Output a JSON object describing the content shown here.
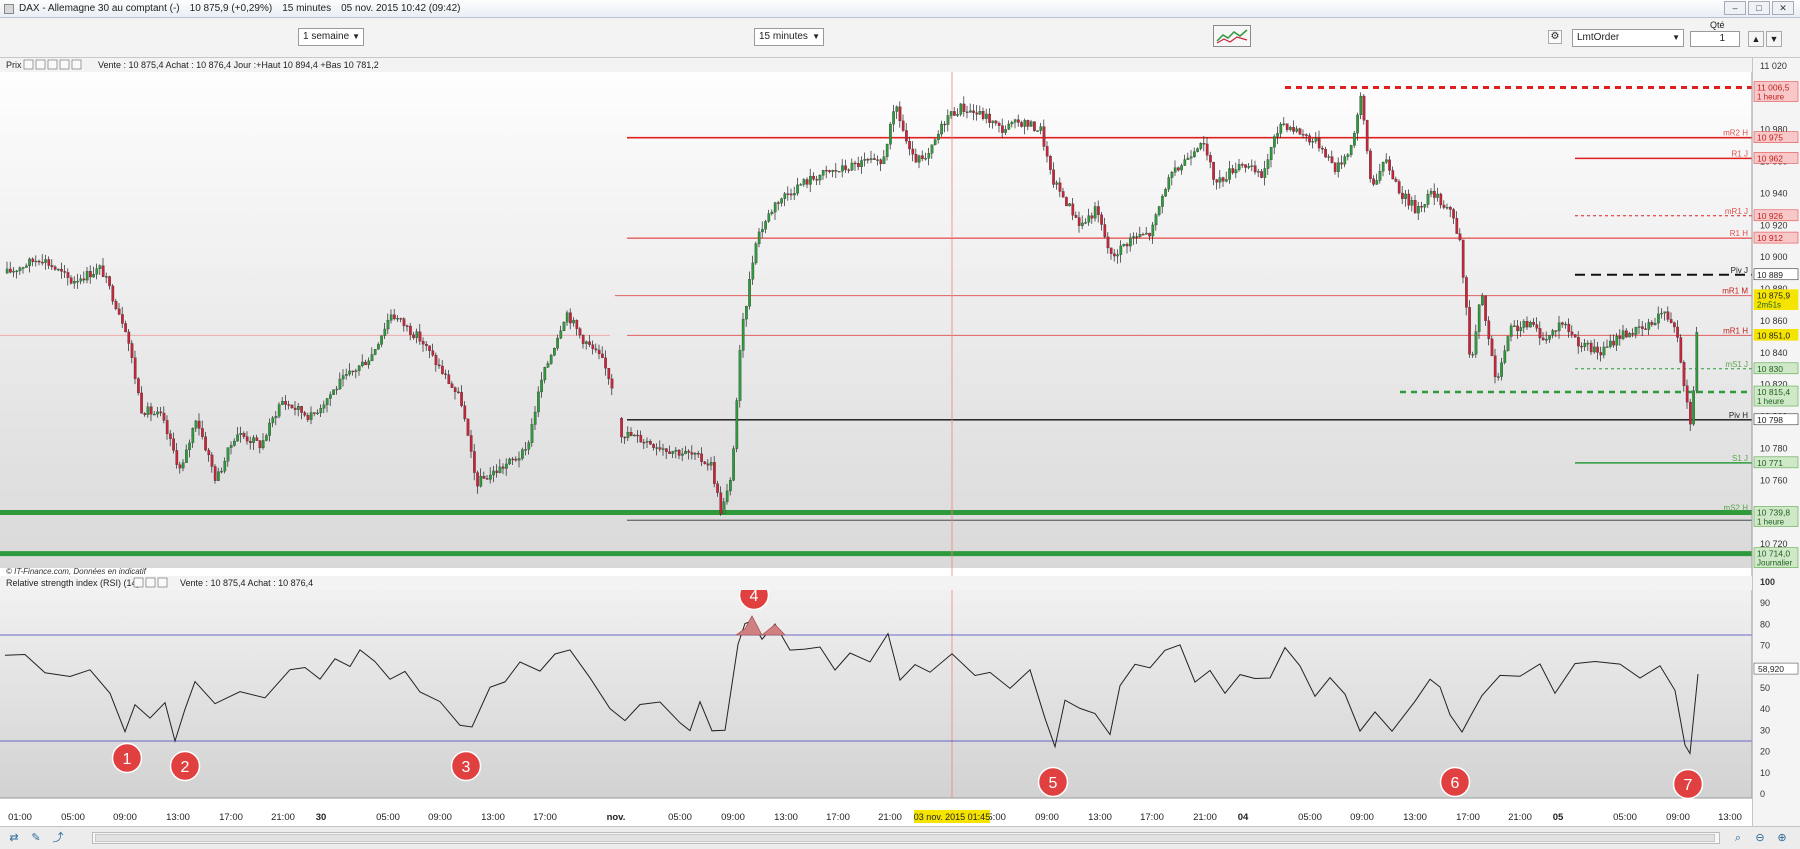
{
  "window": {
    "title": "DAX - Allemagne 30 au comptant (-)",
    "quote": "10 875,9 (+0,29%)",
    "interval": "15 minutes",
    "datetime": "05 nov. 2015 10:42 (09:42)"
  },
  "toolbar": {
    "period": "1 semaine",
    "timeframe": "15 minutes",
    "order_type": "LmtOrder",
    "qty_label": "Qté",
    "qty_value": "1"
  },
  "price_panel": {
    "label": "Prix",
    "info": "Vente : 10 875,4 Achat : 10 876,4 Jour :+Haut 10 894,4 +Bas 10 781,2",
    "credit": "© IT-Finance.com, Données en indicatif",
    "y_ticks": [
      "11 020",
      "11 000",
      "10 980",
      "10 960",
      "10 940",
      "10 920",
      "10 900",
      "10 880",
      "10 860",
      "10 840",
      "10 820",
      "10 800",
      "10 780",
      "10 760",
      "10 740",
      "10 720"
    ],
    "level_tags": [
      {
        "text": "11 006,5",
        "sub": "1 heure",
        "color": "#e05050",
        "price": 11006.5
      },
      {
        "text": "10 975",
        "sub": "",
        "color": "#e05050",
        "price": 10975,
        "name": "mR2 H"
      },
      {
        "text": "10 962",
        "sub": "",
        "color": "#e05050",
        "price": 10962,
        "name": "R1 J"
      },
      {
        "text": "10 926",
        "sub": "",
        "color": "#e05050",
        "price": 10926,
        "name": "mR1 J"
      },
      {
        "text": "10 912",
        "sub": "",
        "color": "#e05050",
        "price": 10912,
        "name": "R1 H"
      },
      {
        "text": "10 889",
        "sub": "",
        "color": "#333333",
        "price": 10889,
        "name": "Piv J"
      },
      {
        "text": "10 875,9",
        "sub": "2m51s",
        "color": "#f5e400",
        "price": 10875.9,
        "name": "mR1 M"
      },
      {
        "text": "10 851,0",
        "sub": "",
        "color": "#f5e400",
        "price": 10851,
        "name": "mR1 H"
      },
      {
        "text": "10 830",
        "sub": "",
        "color": "#5aa84a",
        "price": 10830,
        "name": "mS1 J"
      },
      {
        "text": "10 815,4",
        "sub": "1 heure",
        "color": "#5aa84a",
        "price": 10815.4
      },
      {
        "text": "10 798",
        "sub": "",
        "color": "#333333",
        "price": 10798,
        "name": "Piv H"
      },
      {
        "text": "10 771",
        "sub": "",
        "color": "#5aa84a",
        "price": 10771,
        "name": "S1 J"
      },
      {
        "text": "10 739,8",
        "sub": "1 heure",
        "color": "#5aa84a",
        "price": 10739.8,
        "name": "mS2 H"
      },
      {
        "text": "10 714,0",
        "sub": "Journalier",
        "color": "#5aa84a",
        "price": 10714
      }
    ]
  },
  "rsi_panel": {
    "label": "Relative strength index (RSI) (14)",
    "info": "Vente : 10 875,4 Achat : 10 876,4",
    "y_ticks": [
      "100",
      "90",
      "80",
      "70",
      "60",
      "50",
      "40",
      "30",
      "20",
      "10",
      "0"
    ],
    "current": "58,920",
    "markers": [
      "1",
      "2",
      "3",
      "4",
      "5",
      "6",
      "7"
    ]
  },
  "time_axis": {
    "labels": [
      "01:00",
      "05:00",
      "09:00",
      "13:00",
      "17:00",
      "21:00",
      "30",
      "05:00",
      "09:00",
      "13:00",
      "17:00",
      "nov.",
      "05:00",
      "09:00",
      "13:00",
      "17:00",
      "21:00",
      "05:00",
      "09:00",
      "13:00",
      "17:00",
      "21:00",
      "04",
      "05:00",
      "09:00",
      "13:00",
      "17:00",
      "21:00",
      "05",
      "05:00",
      "09:00",
      "13:00"
    ],
    "cursor_label": "03 nov. 2015 01:45"
  },
  "colors": {
    "up": "#2e9a3c",
    "down": "#c8243c",
    "resistance": "#e02020",
    "support": "#2e9a3c",
    "marker": "#e04040"
  },
  "chart_data": {
    "type": "candlestick",
    "instrument": "DAX",
    "timeframe": "15 minutes",
    "ylim": [
      10705,
      11025
    ],
    "rsi": {
      "levels": [
        25,
        75
      ],
      "ylim": [
        0,
        100
      ],
      "last": 58.92
    }
  }
}
